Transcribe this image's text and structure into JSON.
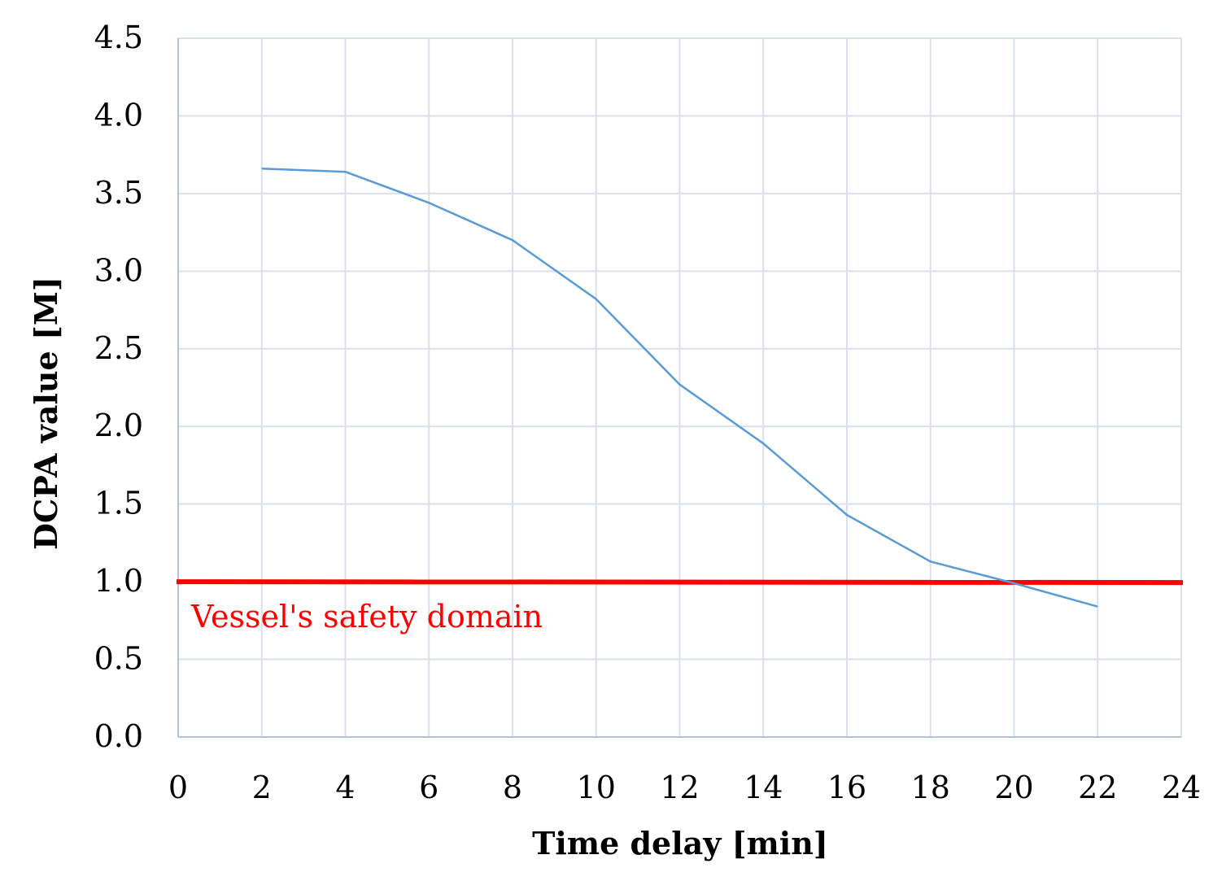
{
  "chart_data": {
    "type": "line",
    "xlabel": "Time delay [min]",
    "ylabel": "DCPA value [M]",
    "xlim": [
      0,
      24
    ],
    "ylim": [
      0,
      4.5
    ],
    "xticks": [
      "0",
      "2",
      "4",
      "6",
      "8",
      "10",
      "12",
      "14",
      "16",
      "18",
      "20",
      "22",
      "24"
    ],
    "yticks": [
      "0.0",
      "0.5",
      "1.0",
      "1.5",
      "2.0",
      "2.5",
      "3.0",
      "3.5",
      "4.0",
      "4.5"
    ],
    "grid": true,
    "series": [
      {
        "x": [
          2,
          4,
          6,
          8,
          10,
          12,
          14,
          16,
          18,
          20,
          22
        ],
        "y": [
          3.66,
          3.64,
          3.44,
          3.2,
          2.82,
          2.27,
          1.89,
          1.43,
          1.13,
          0.99,
          0.84
        ],
        "color": "#5b9bd5"
      }
    ],
    "threshold": {
      "y": [
        1.0,
        0.995
      ],
      "color": "#ff0000",
      "label": "Vessel's safety domain"
    }
  }
}
